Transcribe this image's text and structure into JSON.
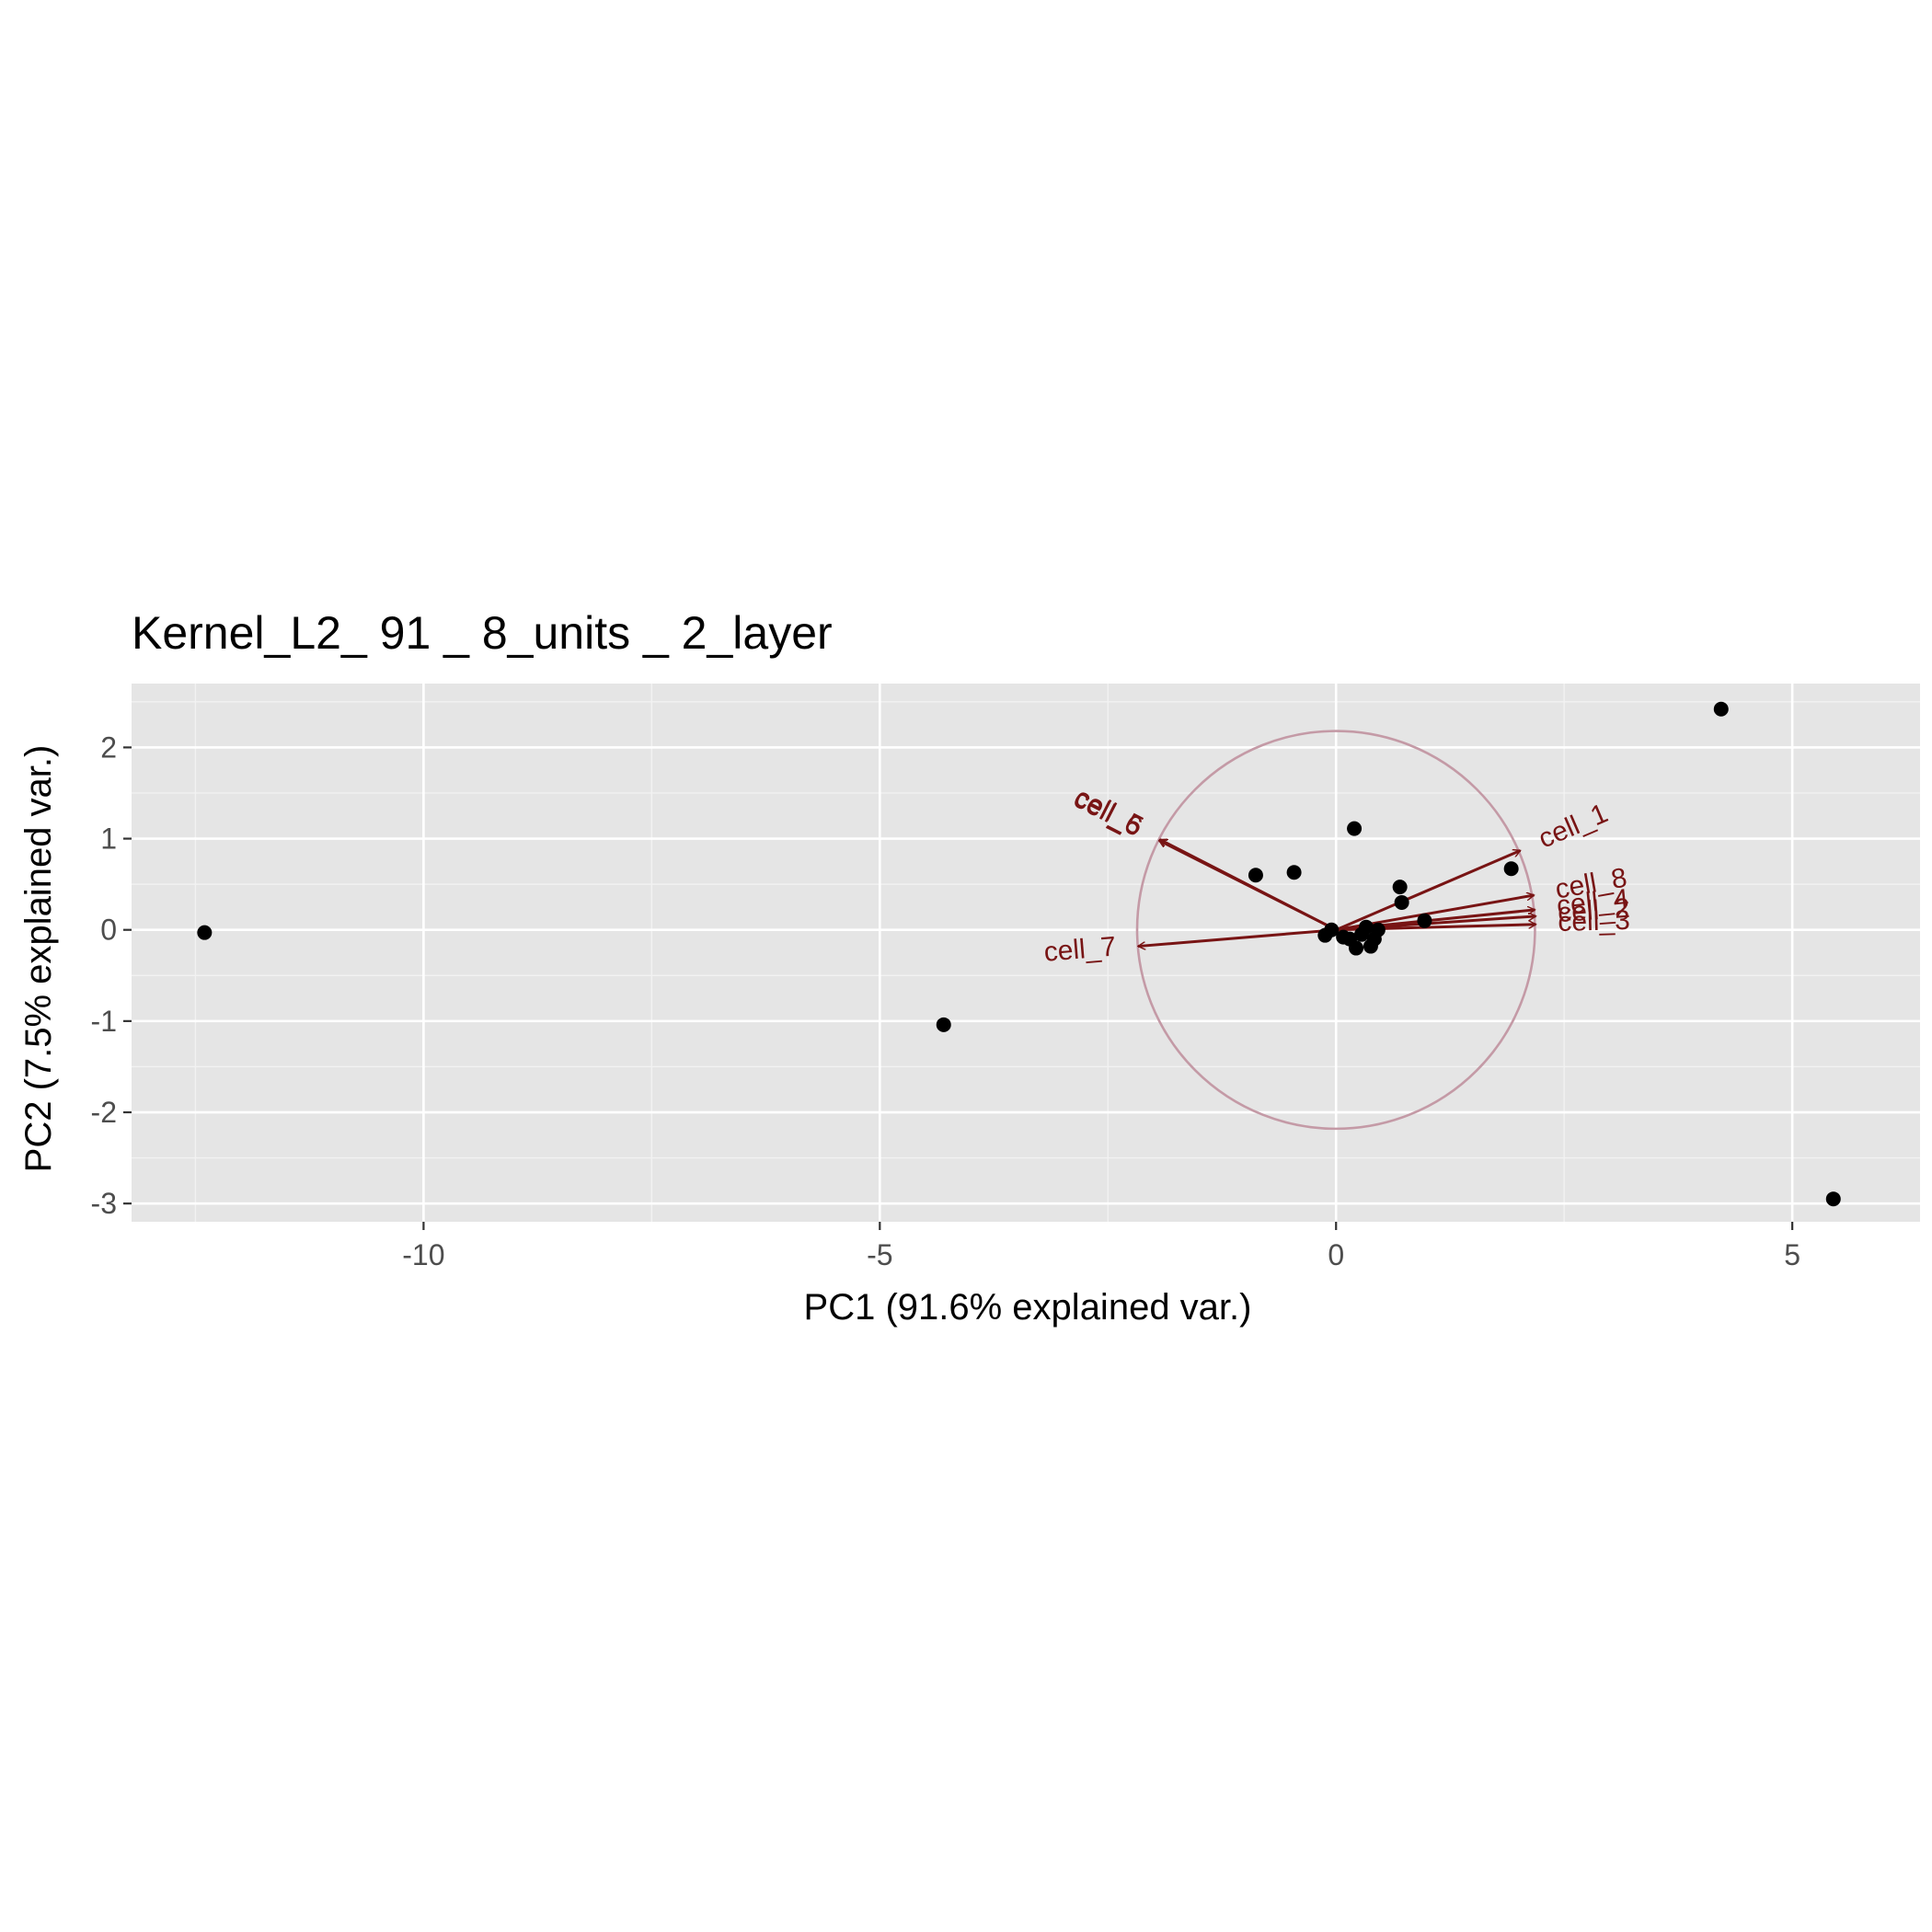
{
  "chart_data": {
    "type": "scatter",
    "subtype": "pca-biplot",
    "title": "Kernel_L2_ 91 _ 8_units _ 2_layer",
    "xlabel": "PC1 (91.6% explained var.)",
    "ylabel": "PC2 (7.5% explained var.)",
    "xlim": [
      -13.2,
      6.4
    ],
    "ylim": [
      -3.2,
      2.7
    ],
    "xticks": [
      -10,
      -5,
      0,
      5
    ],
    "xtick_labels": [
      "-10",
      "-5",
      "0",
      "5"
    ],
    "yticks": [
      -3,
      -2,
      -1,
      0,
      1,
      2
    ],
    "ytick_labels": [
      "-3",
      "-2",
      "-1",
      "0",
      "1",
      "2"
    ],
    "grid": true,
    "points": [
      {
        "x": -12.4,
        "y": -0.03
      },
      {
        "x": -4.3,
        "y": -1.04
      },
      {
        "x": -0.88,
        "y": 0.6
      },
      {
        "x": -0.46,
        "y": 0.63
      },
      {
        "x": -0.12,
        "y": -0.06
      },
      {
        "x": -0.05,
        "y": 0.0
      },
      {
        "x": 0.08,
        "y": -0.08
      },
      {
        "x": 0.15,
        "y": -0.1
      },
      {
        "x": 0.2,
        "y": 1.11
      },
      {
        "x": 0.22,
        "y": -0.2
      },
      {
        "x": 0.28,
        "y": -0.05
      },
      {
        "x": 0.33,
        "y": 0.03
      },
      {
        "x": 0.38,
        "y": -0.18
      },
      {
        "x": 0.42,
        "y": -0.1
      },
      {
        "x": 0.46,
        "y": 0.0
      },
      {
        "x": 0.7,
        "y": 0.47
      },
      {
        "x": 0.72,
        "y": 0.3
      },
      {
        "x": 0.97,
        "y": 0.1
      },
      {
        "x": 1.92,
        "y": 0.67
      },
      {
        "x": 4.22,
        "y": 2.42
      },
      {
        "x": 5.45,
        "y": -2.95
      }
    ],
    "circle": {
      "cx": 0.0,
      "cy": 0.0,
      "r": 2.18
    },
    "arrows": [
      {
        "name": "cell_1",
        "x": 2.02,
        "y": 0.87
      },
      {
        "name": "cell_8",
        "x": 2.17,
        "y": 0.38
      },
      {
        "name": "cell_4",
        "x": 2.18,
        "y": 0.22
      },
      {
        "name": "cell_2",
        "x": 2.19,
        "y": 0.15
      },
      {
        "name": "cell_3",
        "x": 2.19,
        "y": 0.06
      },
      {
        "name": "cell_5",
        "x": -1.93,
        "y": 0.99
      },
      {
        "name": "cell_6",
        "x": -1.94,
        "y": 0.98
      },
      {
        "name": "cell_7",
        "x": -2.17,
        "y": -0.18
      }
    ],
    "colors": {
      "panel": "#e5e5e5",
      "grid_major": "#ffffff",
      "grid_minor": "#f2f2f2",
      "point": "#000000",
      "arrow": "#781414",
      "circle": "#c49aa6",
      "tick_label": "#4d4d4d"
    }
  }
}
